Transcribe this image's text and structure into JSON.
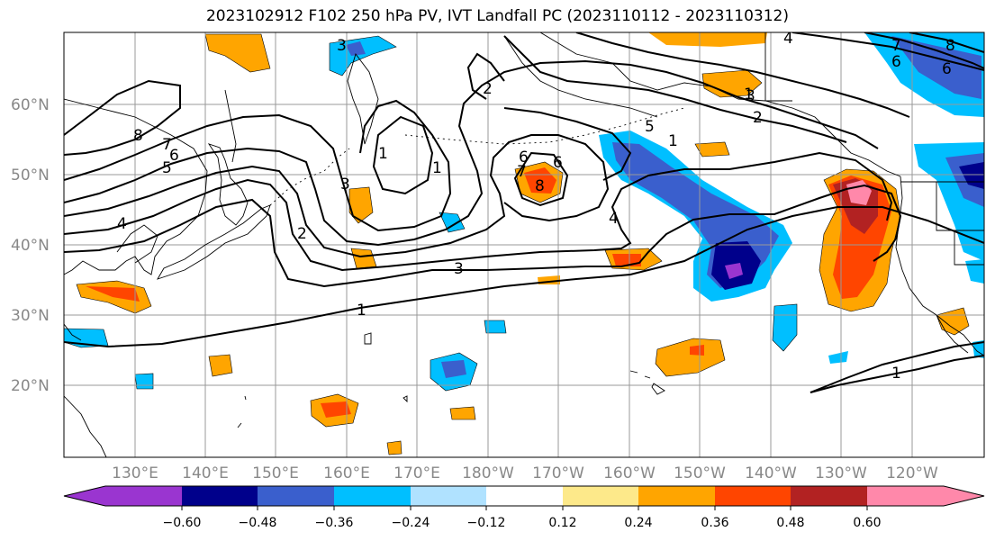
{
  "title": "2023102912 F102 250 hPa PV, IVT Landfall PC (2023110112 - 2023110312)",
  "lat_labels": [
    "60°N",
    "50°N",
    "40°N",
    "30°N",
    "20°N"
  ],
  "lon_labels": [
    "130°E",
    "140°E",
    "150°E",
    "160°E",
    "170°E",
    "180°W",
    "170°W",
    "160°W",
    "150°W",
    "140°W",
    "130°W",
    "120°W"
  ],
  "colorbar": {
    "ticks": [
      "−0.60",
      "−0.48",
      "−0.36",
      "−0.24",
      "−0.12",
      "0.12",
      "0.24",
      "0.36",
      "0.48",
      "0.60"
    ],
    "colors": [
      "#9a35d0",
      "#00008b",
      "#3a5fcd",
      "#00bfff",
      "#b0e2ff",
      "#ffffff",
      "#fde98a",
      "#ffa500",
      "#ff4500",
      "#b22222",
      "#ff88aa"
    ]
  },
  "contour_labels": [
    "3",
    "1",
    "2",
    "8",
    "7",
    "6",
    "5",
    "4",
    "3",
    "1",
    "3",
    "1",
    "2",
    "5",
    "6",
    "8",
    "7",
    "6",
    "1",
    "4",
    "3",
    "1",
    "1",
    "4",
    "6",
    "2",
    "7",
    "6",
    "8"
  ],
  "colors": {
    "pos_light": "#fde98a",
    "pos_mid": "#ffa500",
    "pos_strong": "#ff4500",
    "pos_dark": "#b22222",
    "pos_max": "#ff88aa",
    "neg_light": "#b0e2ff",
    "neg_mid": "#00bfff",
    "neg_strong": "#3a5fcd",
    "neg_dark": "#00008b",
    "neg_max": "#9a35d0"
  }
}
